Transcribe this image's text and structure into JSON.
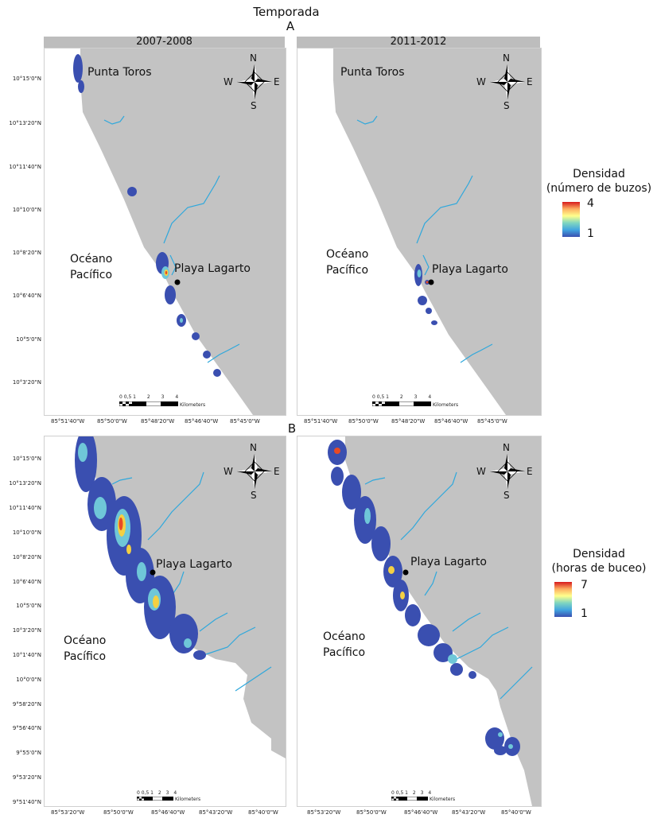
{
  "header": {
    "title": "Temporada"
  },
  "sections": [
    {
      "letter": "A"
    },
    {
      "letter": "B"
    }
  ],
  "columns": [
    "2007-2008",
    "2011-2012"
  ],
  "panels": {
    "a1": {
      "lat_labels": [
        "10°15'0\"N",
        "10°13'20\"N",
        "10°11'40\"N",
        "10°10'0\"N",
        "10°8'20\"N",
        "10°6'40\"N",
        "10°5'0\"N",
        "10°3'20\"N"
      ],
      "lon_labels": [
        "85°51'40\"W",
        "85°50'0\"W",
        "85°48'20\"W",
        "85°46'40\"W",
        "85°45'0\"W"
      ]
    },
    "a2": {
      "lon_labels": [
        "85°51'40\"W",
        "85°50'0\"W",
        "85°48'20\"W",
        "85°46'40\"W",
        "85°45'0\"W"
      ]
    },
    "b1": {
      "lat_labels": [
        "10°15'0\"N",
        "10°13'20\"N",
        "10°11'40\"N",
        "10°10'0\"N",
        "10°8'20\"N",
        "10°6'40\"N",
        "10°5'0\"N",
        "10°3'20\"N",
        "10°1'40\"N",
        "10°0'0\"N",
        "9°58'20\"N",
        "9°56'40\"N",
        "9°55'0\"N",
        "9°53'20\"N",
        "9°51'40\"N"
      ],
      "lon_labels": [
        "85°53'20\"W",
        "85°50'0\"W",
        "85°46'40\"W",
        "85°43'20\"W",
        "85°40'0\"W"
      ]
    },
    "b2": {
      "lon_labels": [
        "85°53'20\"W",
        "85°50'0\"W",
        "85°46'40\"W",
        "85°43'20\"W",
        "85°40'0\"W"
      ]
    }
  },
  "places": {
    "punta_toros": "Punta Toros",
    "playa_lagarto": "Playa Lagarto",
    "ocean_line1": "Océano",
    "ocean_line2": "Pacífico"
  },
  "compass": {
    "n": "N",
    "s": "S",
    "e": "E",
    "w": "W"
  },
  "scale": {
    "ticks_a": [
      "0 0,5 1",
      "2",
      "3",
      "4"
    ],
    "ticks_b": [
      "0 0,5 1",
      "2",
      "3",
      "4"
    ],
    "unit": "Kilometers"
  },
  "legends": {
    "a": {
      "line1": "Densidad",
      "line2": "(número de buzos)",
      "max": "4",
      "min": "1"
    },
    "b": {
      "line1": "Densidad",
      "line2": "(horas de buceo)",
      "max": "7",
      "min": "1"
    }
  },
  "colors": {
    "land": "#c3c3c3",
    "river": "#2fa8dc",
    "density_low": "#3a4fb0",
    "density_high": "#d7191c"
  }
}
